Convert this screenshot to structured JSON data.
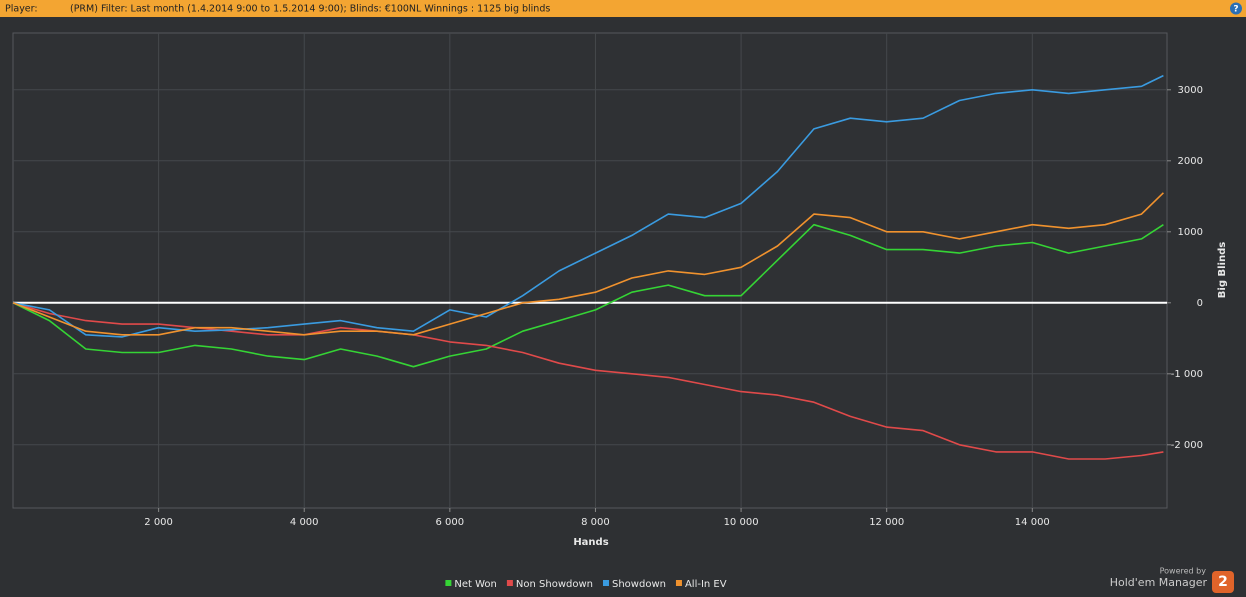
{
  "header": {
    "player": "Player:",
    "filter": "(PRM) Filter:  Last month (1.4.2014 9:00 to 1.5.2014 9:00); Blinds: €100NL Winnings : 1125 big blinds",
    "help": "?"
  },
  "branding": {
    "powered": "Powered by",
    "product": "Hold'em Manager",
    "version": "2"
  },
  "chart_data": {
    "type": "line",
    "x_label": "Hands",
    "y_label": "Big Blinds",
    "x": [
      0,
      500,
      1000,
      1500,
      2000,
      2500,
      3000,
      3500,
      4000,
      4500,
      5000,
      5500,
      6000,
      6500,
      7000,
      7500,
      8000,
      8500,
      9000,
      9500,
      10000,
      10500,
      11000,
      11500,
      12000,
      12500,
      13000,
      13500,
      14000,
      14500,
      15000,
      15500,
      15800
    ],
    "series": [
      {
        "name": "Net Won",
        "color": "#35d435",
        "values": [
          0,
          -250,
          -650,
          -700,
          -700,
          -600,
          -650,
          -750,
          -800,
          -650,
          -750,
          -900,
          -750,
          -650,
          -400,
          -250,
          -100,
          150,
          250,
          100,
          100,
          600,
          1100,
          950,
          750,
          750,
          700,
          800,
          850,
          700,
          800,
          900,
          1100
        ]
      },
      {
        "name": "Non Showdown",
        "color": "#e04a4a",
        "values": [
          0,
          -150,
          -250,
          -300,
          -300,
          -350,
          -400,
          -450,
          -450,
          -350,
          -400,
          -450,
          -550,
          -600,
          -700,
          -850,
          -950,
          -1000,
          -1050,
          -1150,
          -1250,
          -1300,
          -1400,
          -1600,
          -1750,
          -1800,
          -2000,
          -2100,
          -2100,
          -2200,
          -2200,
          -2150,
          -2100
        ]
      },
      {
        "name": "Showdown",
        "color": "#3a9be0",
        "values": [
          0,
          -100,
          -450,
          -480,
          -350,
          -400,
          -380,
          -350,
          -300,
          -250,
          -350,
          -400,
          -100,
          -200,
          100,
          450,
          700,
          950,
          1250,
          1200,
          1400,
          1850,
          2450,
          2600,
          2550,
          2600,
          2850,
          2950,
          3000,
          2950,
          3000,
          3050,
          3200
        ]
      },
      {
        "name": "All-In EV",
        "color": "#f0922e",
        "values": [
          0,
          -200,
          -400,
          -450,
          -450,
          -350,
          -350,
          -400,
          -450,
          -400,
          -400,
          -450,
          -300,
          -150,
          0,
          50,
          150,
          350,
          450,
          400,
          500,
          800,
          1250,
          1200,
          1000,
          1000,
          900,
          1000,
          1100,
          1050,
          1100,
          1250,
          1550
        ]
      }
    ],
    "xlim": [
      0,
      15850
    ],
    "xticks": [
      {
        "value": 2000,
        "label": "2 000"
      },
      {
        "value": 4000,
        "label": "4 000"
      },
      {
        "value": 6000,
        "label": "6 000"
      },
      {
        "value": 8000,
        "label": "8 000"
      },
      {
        "value": 10000,
        "label": "10 000"
      },
      {
        "value": 12000,
        "label": "12 000"
      },
      {
        "value": 14000,
        "label": "14 000"
      }
    ],
    "ylim": [
      -2890,
      3800
    ],
    "yticks": [
      {
        "value": -2000,
        "label": "-2 000"
      },
      {
        "value": -1000,
        "label": "-1 000"
      },
      0,
      1000,
      2000,
      3000
    ],
    "grid": true,
    "zero_line": true
  }
}
